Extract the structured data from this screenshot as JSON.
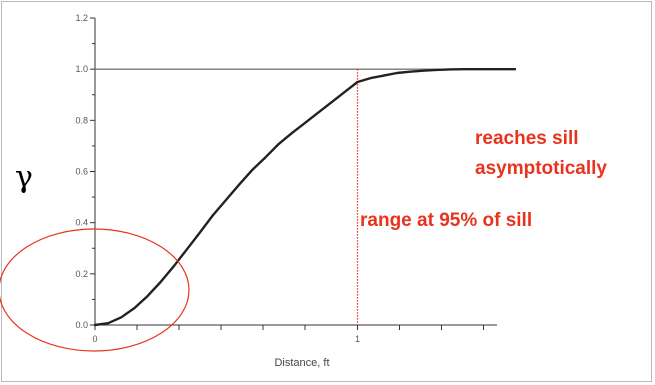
{
  "chart_data": {
    "type": "line",
    "title": "",
    "xlabel": "Distance, ft",
    "ylabel": "γ",
    "xlim": [
      0,
      1.6
    ],
    "ylim": [
      0,
      1.2
    ],
    "x_ticks": [
      0,
      0.16,
      0.32,
      0.48,
      0.64,
      0.8,
      1.0,
      1.16,
      1.32,
      1.48
    ],
    "x_tick_labels": [
      {
        "value": 0,
        "label": "0"
      },
      {
        "value": 1.0,
        "label": "1"
      }
    ],
    "y_ticks": [
      0.0,
      0.2,
      0.4,
      0.6,
      0.8,
      1.0,
      1.2
    ],
    "y_tick_labels": [
      "0.0",
      "0.2",
      "0.4",
      "0.6",
      "0.8",
      "1.0",
      "1.2"
    ],
    "grid": false,
    "series": [
      {
        "x": [
          0,
          0.05,
          0.1,
          0.15,
          0.2,
          0.25,
          0.3,
          0.35,
          0.4,
          0.45,
          0.5,
          0.55,
          0.6,
          0.65,
          0.7,
          0.75,
          0.8,
          0.85,
          0.9,
          0.95,
          1.0,
          1.05,
          1.1,
          1.15,
          1.2,
          1.25,
          1.3,
          1.35,
          1.4,
          1.45,
          1.5,
          1.6
        ],
        "y": [
          0.0,
          0.007,
          0.03,
          0.066,
          0.113,
          0.168,
          0.23,
          0.296,
          0.362,
          0.43,
          0.49,
          0.55,
          0.607,
          0.656,
          0.708,
          0.75,
          0.79,
          0.83,
          0.87,
          0.91,
          0.95,
          0.965,
          0.975,
          0.985,
          0.99,
          0.994,
          0.997,
          0.999,
          1.0,
          1.0,
          1.0,
          1.0
        ],
        "color": "#222222"
      }
    ],
    "sill": {
      "y": 1.0,
      "color": "#777777"
    },
    "range_marker": {
      "x": 1.0,
      "color": "#e8331f",
      "style": "dotted"
    },
    "annotations": [
      {
        "text": "reaches sill",
        "color": "#e8331f"
      },
      {
        "text": "asymptotically",
        "color": "#e8331f"
      },
      {
        "text": "range at 95% of sill",
        "color": "#e8331f"
      }
    ],
    "highlight_ellipse": {
      "color": "#e8331f"
    }
  }
}
